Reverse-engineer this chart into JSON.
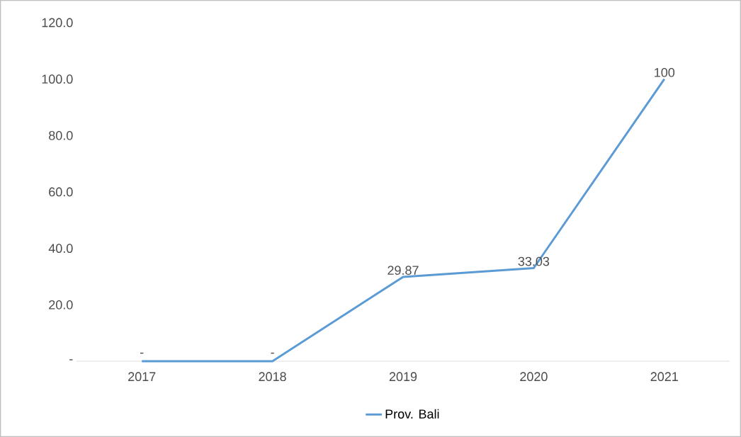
{
  "chart_data": {
    "type": "line",
    "categories": [
      "2017",
      "2018",
      "2019",
      "2020",
      "2021"
    ],
    "series": [
      {
        "name": "Prov. Bali",
        "color": "#5b9bd5",
        "values": [
          0,
          0,
          29.87,
          33.03,
          100
        ],
        "value_labels": [
          "-",
          "-",
          "29.87",
          "33.03",
          "100"
        ]
      }
    ],
    "ylim": [
      0,
      120
    ],
    "yticks": [
      {
        "value": 0,
        "label": "-"
      },
      {
        "value": 20,
        "label": "20.0"
      },
      {
        "value": 40,
        "label": "40.0"
      },
      {
        "value": 60,
        "label": "60.0"
      },
      {
        "value": 80,
        "label": "80.0"
      },
      {
        "value": 100,
        "label": "100.0"
      },
      {
        "value": 120,
        "label": "120.0"
      }
    ],
    "grid": false,
    "legend": "bottom",
    "marker": "none",
    "line_style": "solid"
  }
}
